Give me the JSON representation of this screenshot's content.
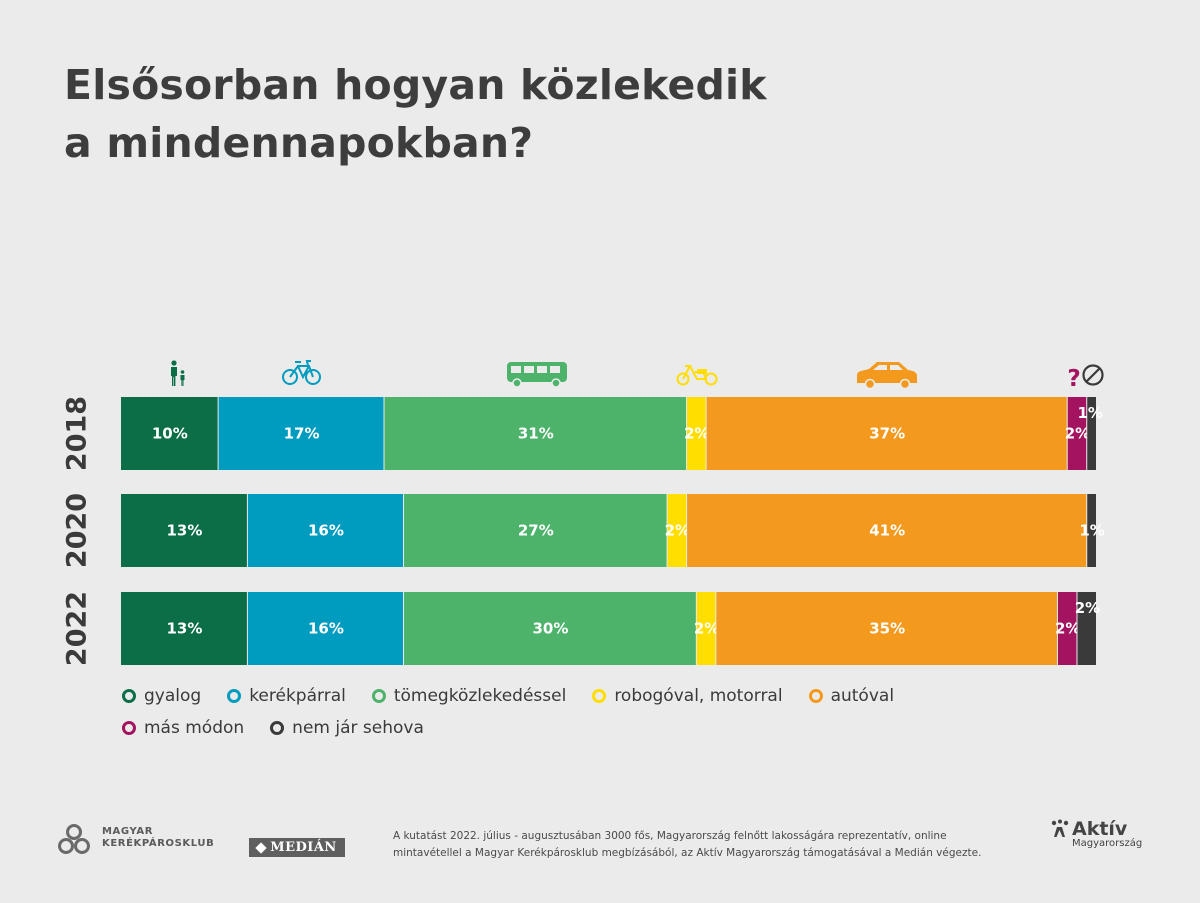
{
  "title": [
    "Elsősorban hogyan közlekedik",
    "a mindennapokban?"
  ],
  "chart_data": {
    "type": "bar",
    "orientation": "horizontal",
    "stacked": true,
    "categories": [
      "2018",
      "2020",
      "2022"
    ],
    "unit": "%",
    "series": [
      {
        "name": "gyalog",
        "color": "#0b6e47",
        "values": [
          10,
          13,
          13
        ],
        "labels": [
          "10%",
          "13%",
          "13%"
        ],
        "icon": "pedestrian-icon"
      },
      {
        "name": "kerékpárral",
        "color": "#009cc0",
        "values": [
          17,
          16,
          16
        ],
        "labels": [
          "17%",
          "16%",
          "16%"
        ],
        "icon": "bicycle-icon"
      },
      {
        "name": "tömegközlekedéssel",
        "color": "#4db36b",
        "values": [
          31,
          27,
          30
        ],
        "labels": [
          "31%",
          "27%",
          "30%"
        ],
        "icon": "bus-icon"
      },
      {
        "name": "robogóval, motorral",
        "color": "#ffde00",
        "values": [
          2,
          2,
          2
        ],
        "labels": [
          "2%",
          "2%",
          "2%"
        ],
        "icon": "scooter-icon"
      },
      {
        "name": "autóval",
        "color": "#f39a1e",
        "values": [
          37,
          41,
          35
        ],
        "labels": [
          "37%",
          "41%",
          "35%"
        ],
        "icon": "car-icon"
      },
      {
        "name": "más módon",
        "color": "#a3135f",
        "values": [
          2,
          0,
          2
        ],
        "labels": [
          "2%",
          "",
          "2%"
        ],
        "icon": "question-mark-icon"
      },
      {
        "name": "nem jár sehova",
        "color": "#3a3a3a",
        "values": [
          1,
          1,
          2
        ],
        "labels": [
          "1%",
          "1%",
          "2%"
        ],
        "icon": "no-entry-icon"
      }
    ],
    "legend_position": "bottom",
    "grid": false
  },
  "footer": {
    "mk_logo": [
      "MAGYAR",
      "KERÉKPÁROSKLUB"
    ],
    "median_logo": "MEDIÁN",
    "note": [
      "A kutatást 2022. július  - augusztusában 3000 fős, Magyarország felnőtt lakosságára reprezentatív, online",
      "mintavétellel a Magyar Kerékpárosklub megbízásából, az Aktív Magyarország támogatásával a Medián végezte."
    ],
    "aktiv_logo": {
      "word": "Aktív",
      "sub": "Magyarország"
    }
  }
}
